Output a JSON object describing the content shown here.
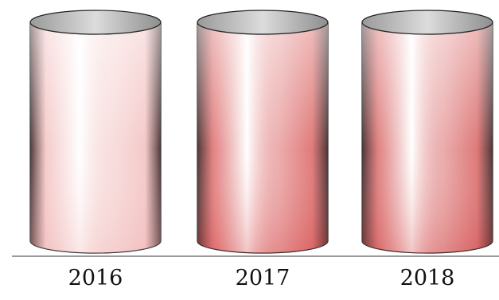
{
  "chart_data": {
    "type": "bar",
    "style": "3d-cylinder",
    "categories": [
      "2016",
      "2017",
      "2018"
    ],
    "values": [
      1,
      1,
      1
    ],
    "ylim": [
      0,
      1
    ],
    "title": "",
    "xlabel": "",
    "ylabel": "",
    "grid": false,
    "legend": "none",
    "colors": {
      "highlight": "#ffffff",
      "cylinder_2016": "#f2bcbc",
      "cylinder_2017": "#d95b5b",
      "cylinder_2018": "#d65a5a",
      "shadow": "#3a2020",
      "baseline": "#9a9a9a"
    }
  }
}
